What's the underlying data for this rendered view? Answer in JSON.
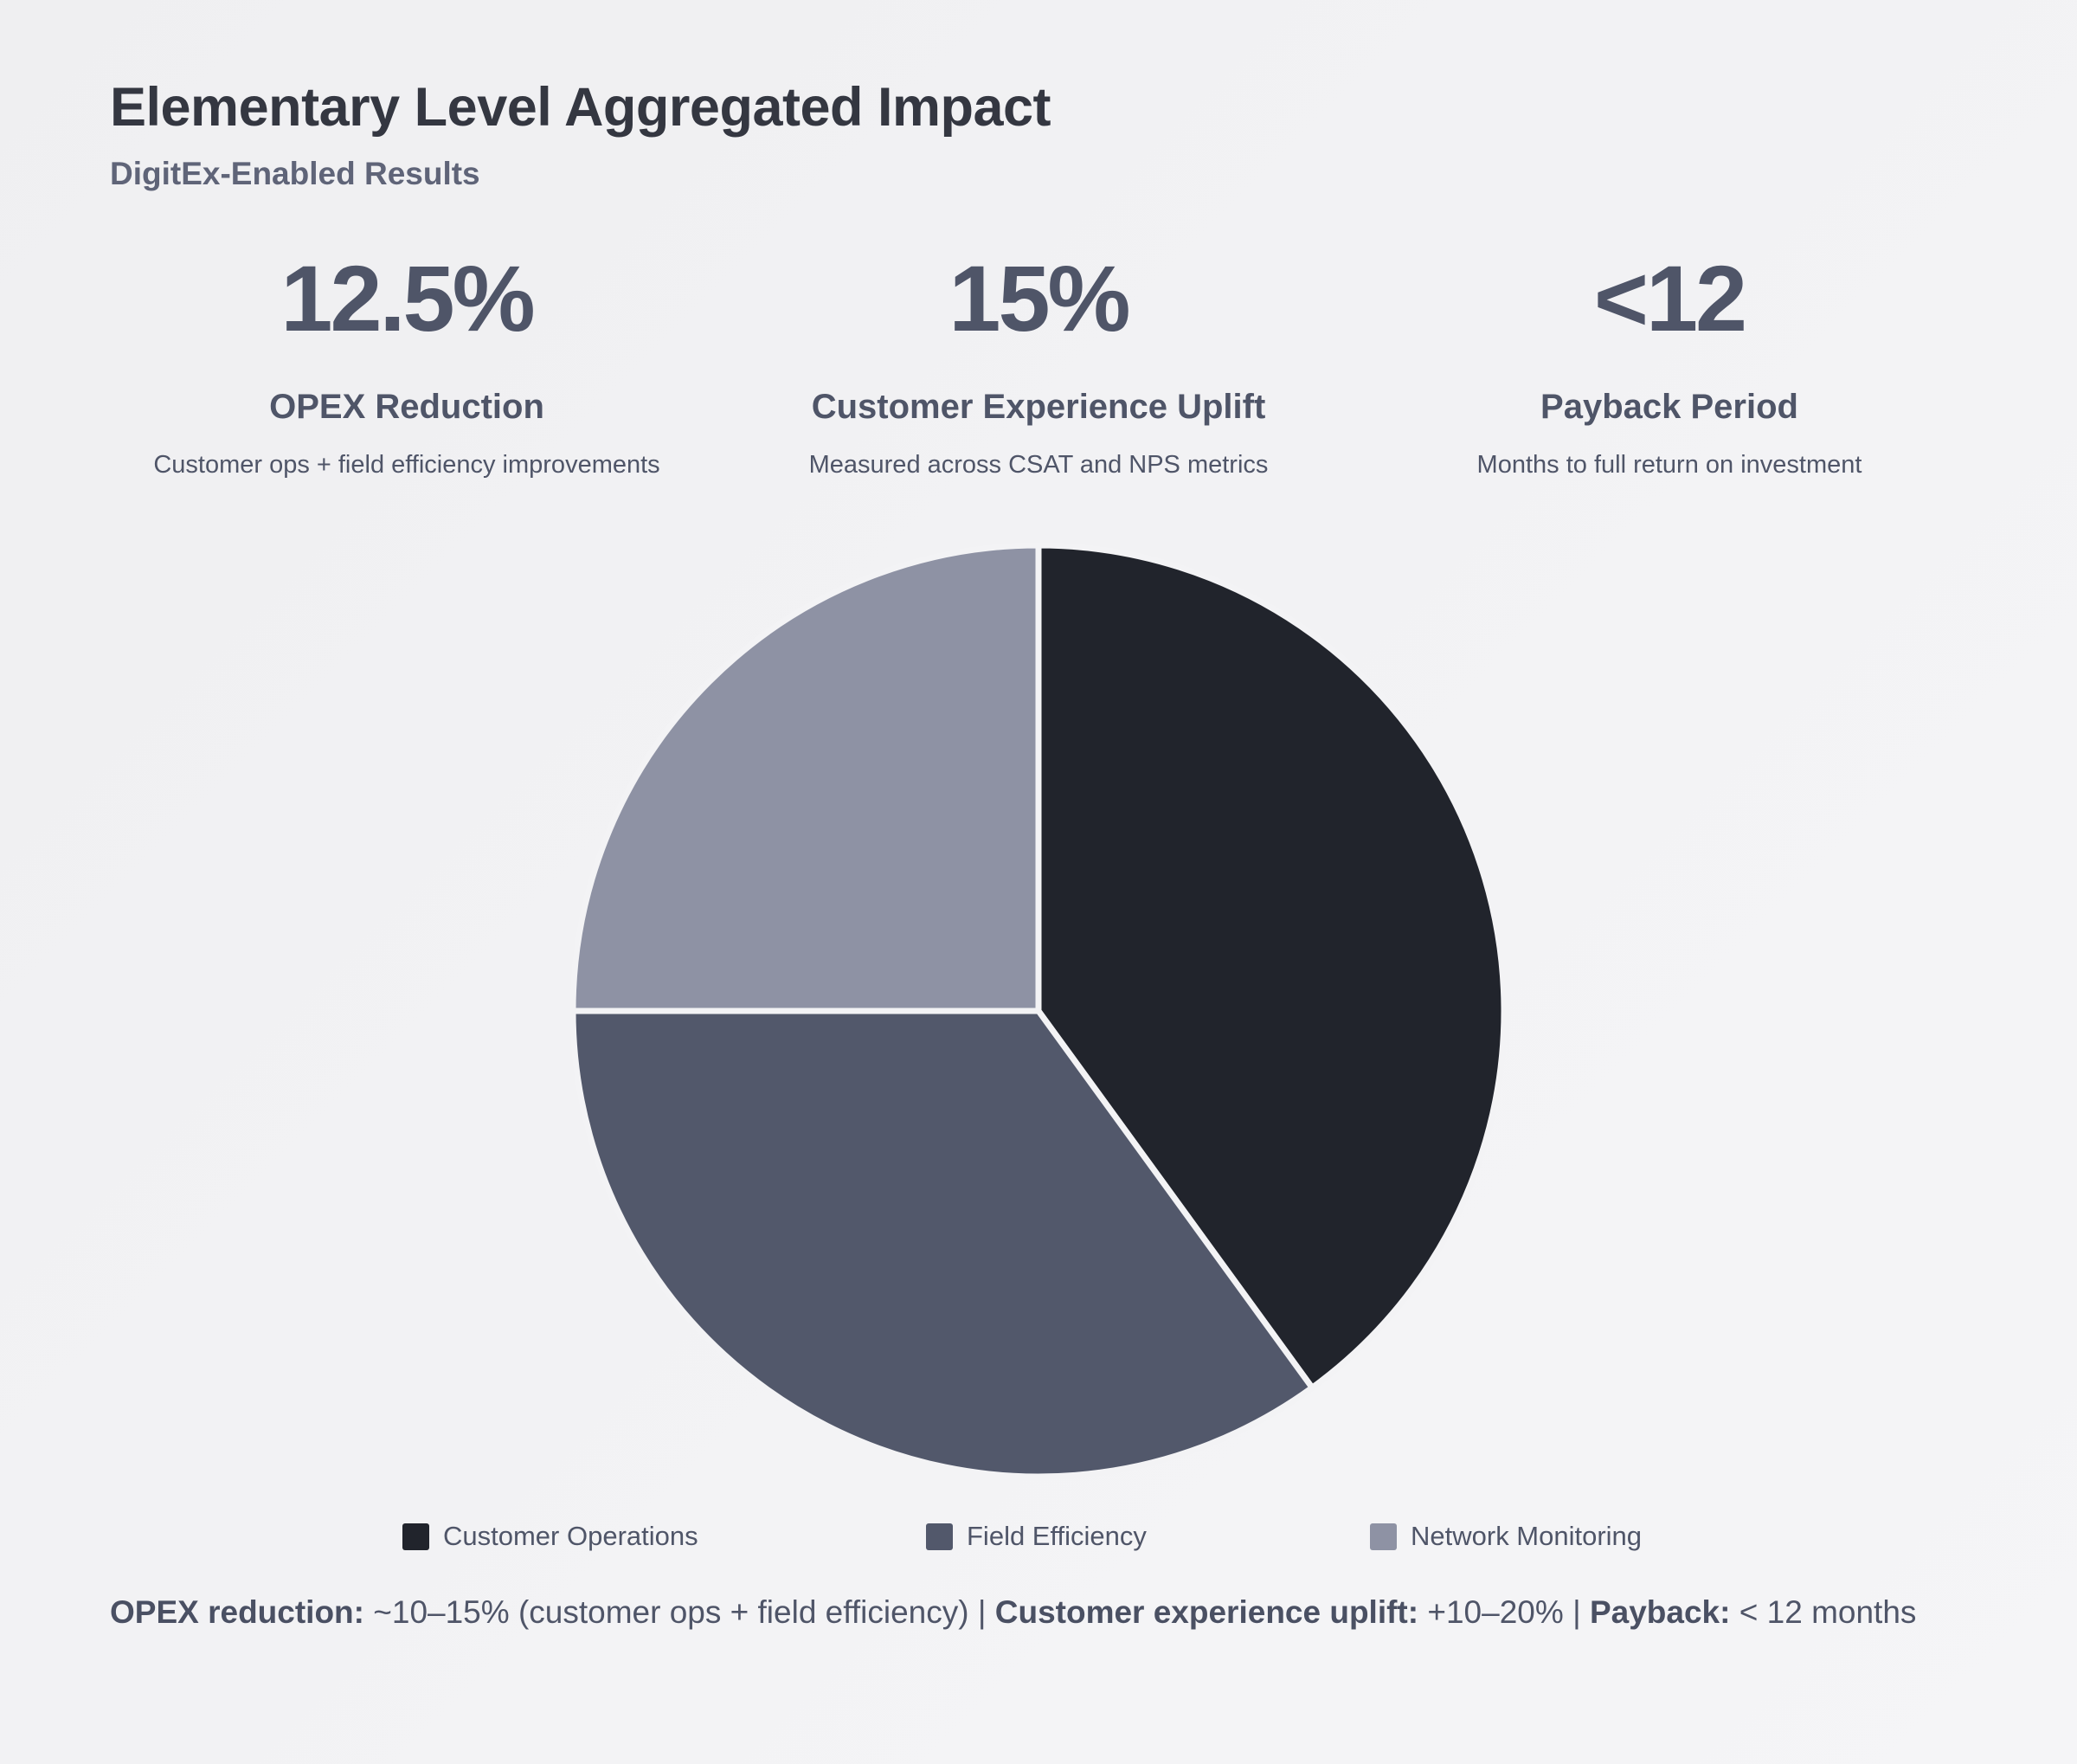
{
  "header": {
    "title": "Elementary Level Aggregated Impact",
    "subtitle": "DigitEx-Enabled Results"
  },
  "kpis": [
    {
      "value": "12.5%",
      "label": "OPEX Reduction",
      "description": "Customer ops + field efficiency improvements"
    },
    {
      "value": "15%",
      "label": "Customer Experience Uplift",
      "description": "Measured across CSAT and NPS metrics"
    },
    {
      "value": "<12",
      "label": "Payback Period",
      "description": "Months to full return on investment"
    }
  ],
  "chart_data": {
    "type": "pie",
    "title": "",
    "categories": [
      "Customer Operations",
      "Field Efficiency",
      "Network Monitoring"
    ],
    "values": [
      40,
      35,
      25
    ],
    "colors": [
      "#21242c",
      "#52586b",
      "#8e92a4"
    ],
    "start_angle": "top, clockwise",
    "legend": "bottom"
  },
  "footer": {
    "opex_label": "OPEX reduction:",
    "opex_value": " ~10–15% (customer ops + field efficiency) ",
    "sep1": "| ",
    "cx_label": "Customer experience uplift:",
    "cx_value": " +10–20% ",
    "sep2": "| ",
    "payback_label": "Payback:",
    "payback_value": " < 12 months"
  }
}
